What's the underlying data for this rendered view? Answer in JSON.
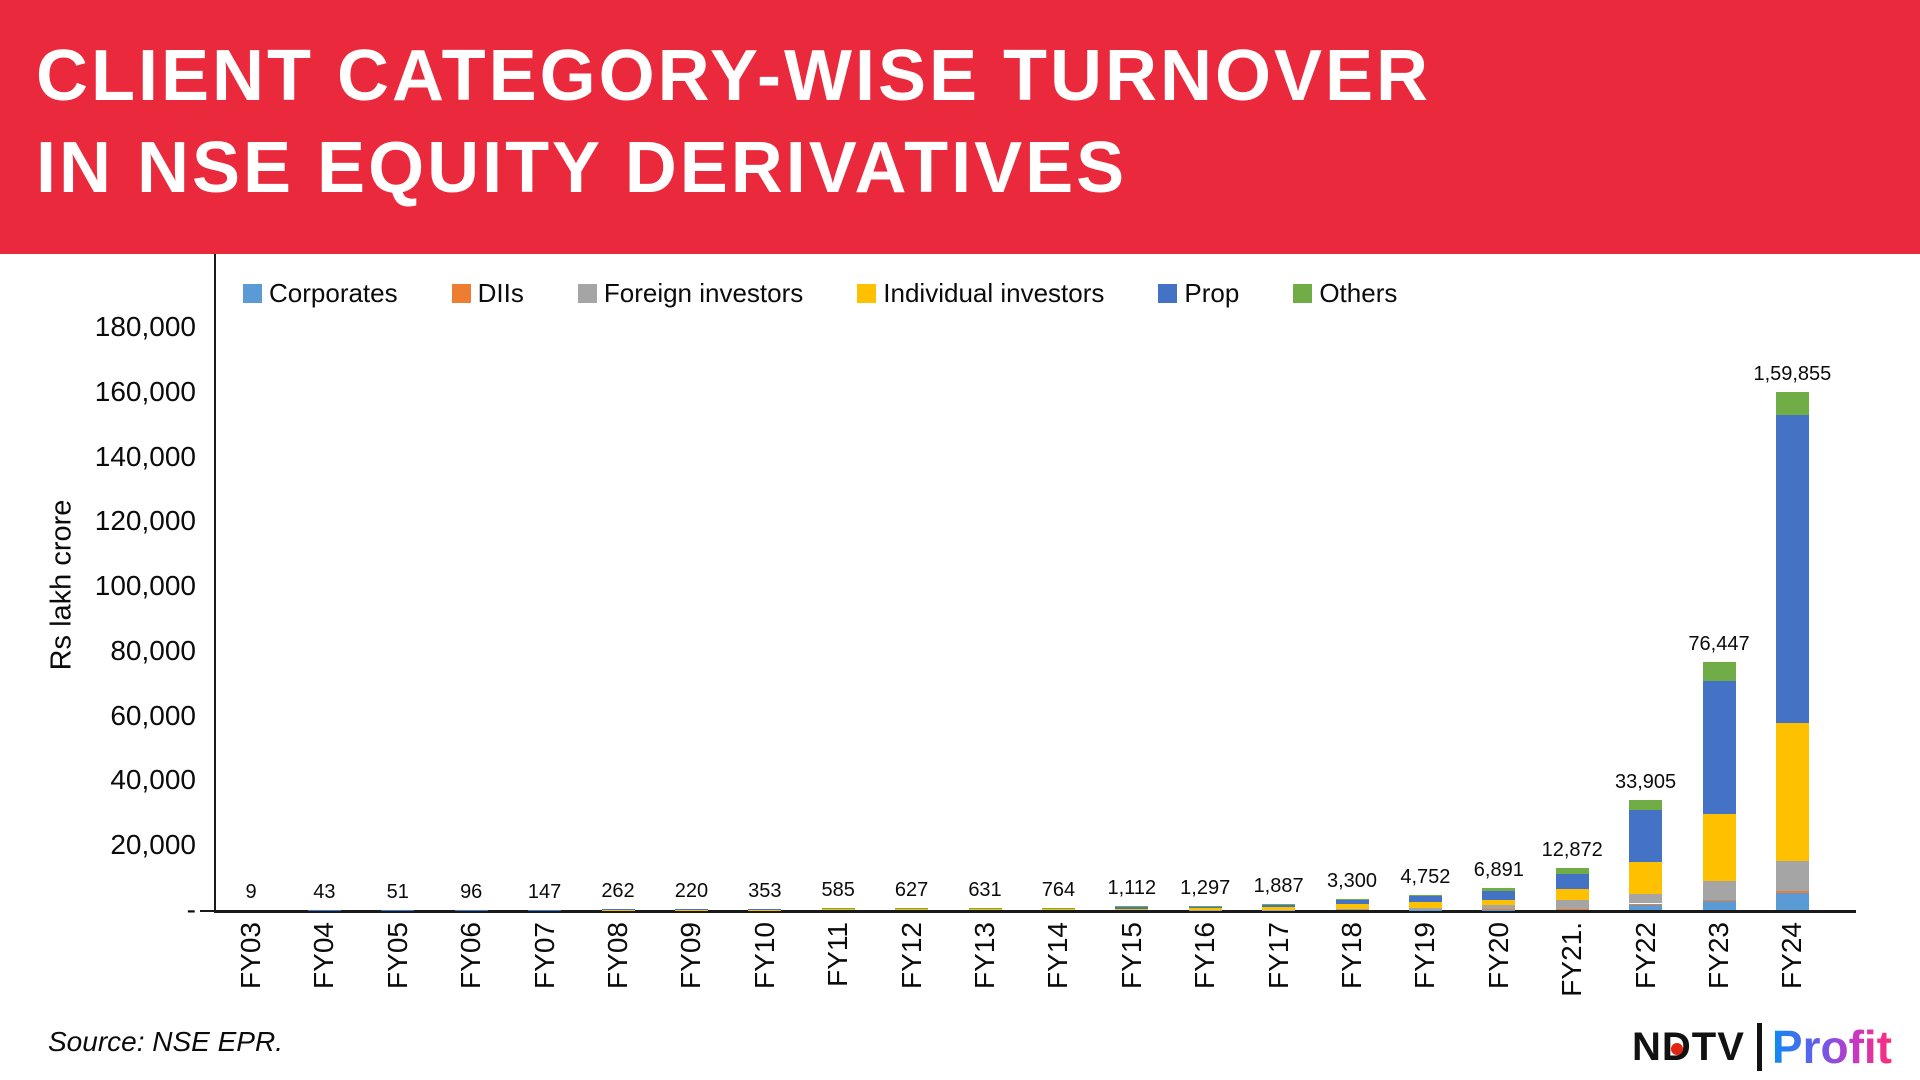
{
  "title": {
    "line1": "CLIENT CATEGORY-WISE TURNOVER",
    "line2": "IN NSE EQUITY DERIVATIVES"
  },
  "source": "Source: NSE EPR.",
  "logo": {
    "ndtv_left": "N",
    "ndtv_d": "D",
    "ndtv_right": "TV",
    "profit": "Profit"
  },
  "colors": {
    "banner_red": "#EA2A3C",
    "axis_black": "#1a1a1a"
  },
  "chart_data": {
    "type": "bar",
    "stacked": true,
    "title": "Client category-wise turnover in NSE equity derivatives",
    "xlabel": "",
    "ylabel": "Rs lakh crore",
    "ylim": [
      0,
      180000
    ],
    "ytick_step": 20000,
    "yticks": [
      "180,000",
      "160,000",
      "140,000",
      "120,000",
      "100,000",
      "80,000",
      "60,000",
      "40,000",
      "20,000",
      "-"
    ],
    "grid": false,
    "legend_position": "top",
    "categories": [
      "FY03",
      "FY04",
      "FY05",
      "FY06",
      "FY07",
      "FY08",
      "FY09",
      "FY10",
      "FY11",
      "FY12",
      "FY13",
      "FY14",
      "FY15",
      "FY16",
      "FY17",
      "FY18",
      "FY19",
      "FY20",
      "FY21.",
      "FY22",
      "FY23",
      "FY24"
    ],
    "totals": [
      9,
      43,
      51,
      96,
      147,
      262,
      220,
      353,
      585,
      627,
      631,
      764,
      1112,
      1297,
      1887,
      3300,
      4752,
      6891,
      12872,
      33905,
      76447,
      159855
    ],
    "total_labels": [
      "9",
      "43",
      "51",
      "96",
      "147",
      "262",
      "220",
      "353",
      "585",
      "627",
      "631",
      "764",
      "1,112",
      "1,297",
      "1,887",
      "3,300",
      "4,752",
      "6,891",
      "12,872",
      "33,905",
      "76,447",
      "1,59,855"
    ],
    "series": [
      {
        "name": "Corporates",
        "color": "#5B9BD5",
        "values": [
          0,
          0,
          0,
          0,
          0,
          0,
          0,
          0,
          0,
          0,
          0,
          0,
          0,
          0,
          0,
          0,
          100,
          150,
          200,
          1900,
          3000,
          5300
        ]
      },
      {
        "name": "DIIs",
        "color": "#ED7D31",
        "values": [
          0,
          0,
          0,
          0,
          0,
          0,
          0,
          0,
          0,
          0,
          0,
          0,
          0,
          0,
          0,
          0,
          0,
          41,
          72,
          105,
          147,
          655
        ]
      },
      {
        "name": "Foreign investors",
        "color": "#A5A5A5",
        "values": [
          0,
          0,
          0,
          0,
          0,
          0,
          0,
          0,
          0,
          0,
          0,
          0,
          0,
          100,
          150,
          300,
          500,
          1200,
          2900,
          2800,
          5800,
          9300
        ]
      },
      {
        "name": "Individual investors",
        "color": "#FFC000",
        "values": [
          3,
          15,
          18,
          35,
          52,
          95,
          80,
          130,
          215,
          230,
          232,
          290,
          420,
          500,
          800,
          1400,
          1800,
          1700,
          3200,
          9900,
          20800,
          42400
        ]
      },
      {
        "name": "Prop",
        "color": "#4472C4",
        "values": [
          5,
          25,
          30,
          55,
          85,
          150,
          125,
          200,
          330,
          355,
          355,
          420,
          600,
          600,
          800,
          1300,
          1800,
          2700,
          4800,
          16100,
          41100,
          95200
        ]
      },
      {
        "name": "Others",
        "color": "#70AD47",
        "values": [
          1,
          3,
          3,
          6,
          10,
          17,
          15,
          23,
          40,
          42,
          44,
          54,
          92,
          97,
          137,
          300,
          552,
          1100,
          1700,
          3100,
          5600,
          7000
        ]
      }
    ]
  }
}
